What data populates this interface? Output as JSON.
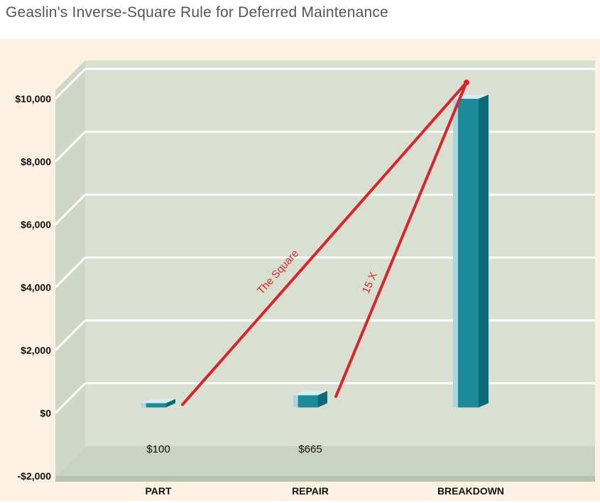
{
  "chart_data": {
    "type": "bar",
    "title": "Geaslin's Inverse-Square Rule for Deferred Maintenance",
    "categories": [
      "PART",
      "REPAIR",
      "BREAKDOWN"
    ],
    "values": [
      100,
      665,
      10000
    ],
    "data_labels": [
      "$100",
      "$665",
      ""
    ],
    "ylim": [
      -2000,
      10000
    ],
    "yticks": [
      -2000,
      0,
      2000,
      4000,
      6000,
      8000,
      10000
    ],
    "ytick_labels": [
      "-$2,000",
      "$0",
      "$2,000",
      "$4,000",
      "$6,000",
      "$8,000",
      "$10,000"
    ],
    "grid": true,
    "annotations": [
      {
        "text": "The Square",
        "from_category": "PART",
        "to_category": "BREAKDOWN"
      },
      {
        "text": "15 X",
        "from_category": "REPAIR",
        "to_category": "BREAKDOWN"
      }
    ],
    "colors": {
      "background": "#fdf1e4",
      "wall": "#d9e0d1",
      "floor": "#c8d3c1",
      "bar": "#1d8a99",
      "bar_dark": "#0c6a78",
      "bar_light": "#a7d7df",
      "annotation": "#d4262b"
    }
  }
}
